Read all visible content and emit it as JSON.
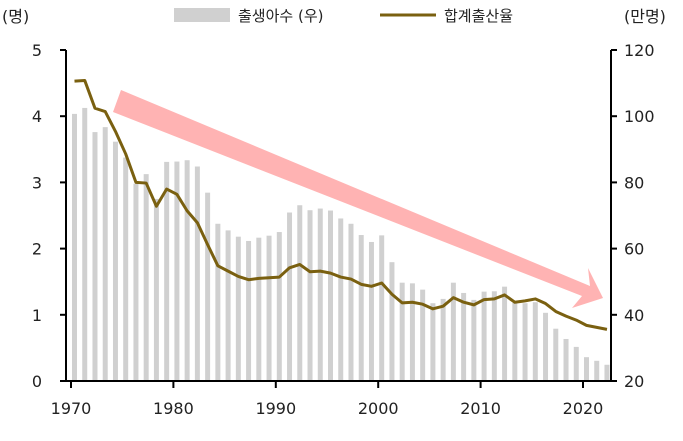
{
  "chart_data": {
    "type": "bar+line",
    "title": "",
    "legend_position": "top",
    "left_axis": {
      "label": "(명)",
      "ylim": [
        0,
        5
      ],
      "ticks": [
        "0",
        "1",
        "2",
        "3",
        "4",
        "5"
      ]
    },
    "right_axis": {
      "label": "(만명)",
      "ylim": [
        20,
        120
      ],
      "ticks": [
        "20",
        "40",
        "60",
        "80",
        "100",
        "120"
      ]
    },
    "x_ticks": [
      "1970",
      "1980",
      "1990",
      "2000",
      "2010",
      "2020"
    ],
    "x": [
      1970,
      1971,
      1972,
      1973,
      1974,
      1975,
      1976,
      1977,
      1978,
      1979,
      1980,
      1981,
      1982,
      1983,
      1984,
      1985,
      1986,
      1987,
      1988,
      1989,
      1990,
      1991,
      1992,
      1993,
      1994,
      1995,
      1996,
      1997,
      1998,
      1999,
      2000,
      2001,
      2002,
      2003,
      2004,
      2005,
      2006,
      2007,
      2008,
      2009,
      2010,
      2011,
      2012,
      2013,
      2014,
      2015,
      2016,
      2017,
      2018,
      2019,
      2020,
      2021,
      2022
    ],
    "series": [
      {
        "name": "출생아수 (우)",
        "type": "bar",
        "axis": "right",
        "color": "#d0d0d0",
        "values": [
          100.7,
          102.5,
          95.2,
          96.7,
          92.3,
          87.5,
          79.6,
          82.5,
          75.0,
          86.2,
          86.3,
          86.7,
          84.8,
          76.9,
          67.5,
          65.5,
          63.6,
          62.3,
          63.3,
          63.9,
          65.0,
          70.9,
          73.1,
          71.6,
          72.1,
          71.5,
          69.1,
          67.5,
          64.1,
          62.0,
          64.0,
          55.9,
          49.7,
          49.5,
          47.6,
          43.5,
          44.8,
          49.7,
          46.6,
          44.5,
          47.0,
          47.1,
          48.5,
          43.6,
          43.5,
          43.8,
          40.6,
          35.8,
          32.7,
          30.3,
          27.2,
          26.1,
          24.9
        ]
      },
      {
        "name": "합계출산율",
        "type": "line",
        "axis": "left",
        "color": "#7a6010",
        "values": [
          4.53,
          4.54,
          4.12,
          4.07,
          3.77,
          3.43,
          3.0,
          2.99,
          2.64,
          2.9,
          2.82,
          2.57,
          2.39,
          2.06,
          1.74,
          1.66,
          1.58,
          1.53,
          1.55,
          1.56,
          1.57,
          1.71,
          1.76,
          1.65,
          1.66,
          1.63,
          1.57,
          1.54,
          1.46,
          1.43,
          1.48,
          1.31,
          1.18,
          1.19,
          1.16,
          1.09,
          1.13,
          1.26,
          1.19,
          1.15,
          1.23,
          1.24,
          1.3,
          1.19,
          1.21,
          1.24,
          1.17,
          1.05,
          0.98,
          0.92,
          0.84,
          0.81,
          0.78
        ]
      }
    ],
    "annotation": {
      "type": "trend-arrow",
      "direction": "down",
      "color": "#ffb3b3"
    }
  }
}
